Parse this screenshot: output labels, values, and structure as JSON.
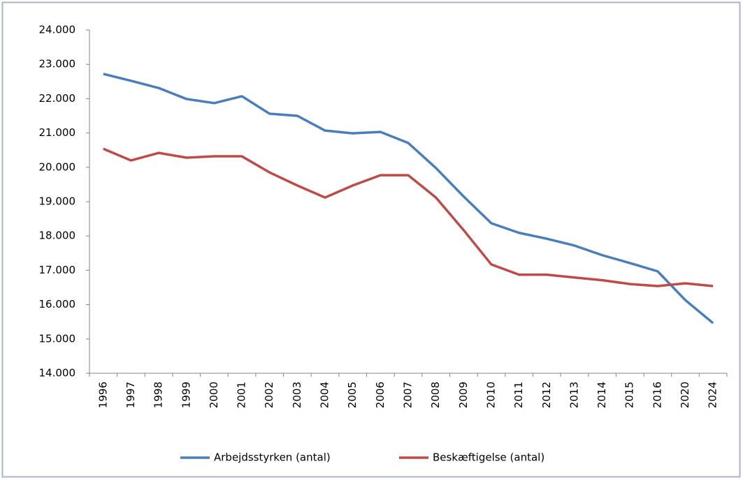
{
  "chart_data": {
    "type": "line",
    "categories": [
      "1996",
      "1997",
      "1998",
      "1999",
      "2000",
      "2001",
      "2002",
      "2003",
      "2004",
      "2005",
      "2006",
      "2007",
      "2008",
      "2009",
      "2010",
      "2011",
      "2012",
      "2013",
      "2014",
      "2015",
      "2016",
      "2020",
      "2024"
    ],
    "series": [
      {
        "name": "Arbejdsstyrken (antal)",
        "color": "#4a7ebb",
        "values": [
          22720,
          22520,
          22310,
          21990,
          21870,
          22070,
          21560,
          21500,
          21070,
          20990,
          21030,
          20710,
          19980,
          19150,
          18370,
          18090,
          17920,
          17720,
          17440,
          17210,
          16970,
          16130,
          15460
        ]
      },
      {
        "name": "Beskæftigelse (antal)",
        "color": "#be4b48",
        "values": [
          20540,
          20200,
          20420,
          20280,
          20320,
          20320,
          19850,
          19470,
          19120,
          19470,
          19770,
          19770,
          19120,
          18170,
          17170,
          16870,
          16870,
          16790,
          16710,
          16600,
          16540,
          16620,
          16540
        ]
      }
    ],
    "ylim": [
      14000,
      24000
    ],
    "yticks": [
      {
        "value": 14000,
        "label": "14.000"
      },
      {
        "value": 15000,
        "label": "15.000"
      },
      {
        "value": 16000,
        "label": "16.000"
      },
      {
        "value": 17000,
        "label": "17.000"
      },
      {
        "value": 18000,
        "label": "18.000"
      },
      {
        "value": 19000,
        "label": "19.000"
      },
      {
        "value": 20000,
        "label": "20.000"
      },
      {
        "value": 21000,
        "label": "21.000"
      },
      {
        "value": 22000,
        "label": "22.000"
      },
      {
        "value": 23000,
        "label": "23.000"
      },
      {
        "value": 24000,
        "label": "24.000"
      }
    ],
    "grid": false,
    "legend": "bottom"
  }
}
